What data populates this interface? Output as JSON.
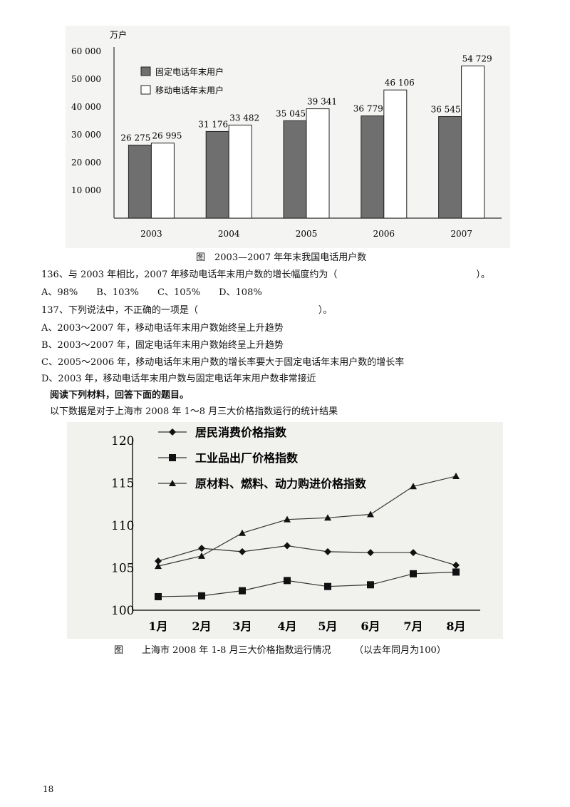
{
  "chart_data": [
    {
      "type": "bar",
      "ylabel": "万户",
      "ylim": [
        0,
        60000
      ],
      "yticks": [
        "10 000",
        "20 000",
        "30 000",
        "40 000",
        "50 000",
        "60 000"
      ],
      "ytick_values": [
        10000,
        20000,
        30000,
        40000,
        50000,
        60000
      ],
      "categories": [
        "2003",
        "2004",
        "2005",
        "2006",
        "2007"
      ],
      "series": [
        {
          "name": "固定电话年末用户",
          "values": [
            26275,
            31176,
            35045,
            36779,
            36545
          ],
          "labels": [
            "26 275",
            "31 176",
            "35 045",
            "36 779",
            "36 545"
          ],
          "color": "#6f6f6f"
        },
        {
          "name": "移动电话年末用户",
          "values": [
            26995,
            33482,
            39341,
            46106,
            54729
          ],
          "labels": [
            "26 995",
            "33 482",
            "39 341",
            "46 106",
            "54 729"
          ],
          "color": "#ffffff"
        }
      ],
      "legend": "top-left",
      "caption": "图　2003—2007 年年末我国电话用户数"
    },
    {
      "type": "line",
      "ylim": [
        100,
        120
      ],
      "yticks": [
        "100",
        "105",
        "110",
        "115",
        "120"
      ],
      "ytick_values": [
        100,
        105,
        110,
        115,
        120
      ],
      "categories": [
        "1月",
        "2月",
        "3月",
        "4月",
        "5月",
        "6月",
        "7月",
        "8月"
      ],
      "series": [
        {
          "name": "居民消费价格指数",
          "marker": "diamond",
          "values": [
            105.8,
            107.3,
            106.9,
            107.6,
            106.9,
            106.8,
            106.8,
            105.3
          ]
        },
        {
          "name": "工业品出厂价格指数",
          "marker": "square",
          "values": [
            101.6,
            101.7,
            102.3,
            103.5,
            102.8,
            103.0,
            104.3,
            104.5
          ]
        },
        {
          "name": "原材料、燃料、动力购进价格指数",
          "marker": "triangle",
          "values": [
            105.2,
            106.4,
            109.1,
            110.7,
            110.9,
            111.3,
            114.6,
            115.8
          ]
        }
      ],
      "legend": "top-left",
      "caption_main": "图　　上海市 2008 年 1-8 月三大价格指数运行情况",
      "caption_note": "（以去年同月为100）"
    }
  ],
  "q136": {
    "text": "136、与 2003 年相比，2007 年移动电话年末用户数的增长幅度约为（　　　　　　　　　　　　　　　）。",
    "options": "A、98%　　B、103%　　C、105%　　D、108%"
  },
  "q137": {
    "text": "137、下列说法中，不正确的一项是（　　　　　　　　　　　　　）。",
    "a": "A、2003～2007 年，移动电话年末用户数始终呈上升趋势",
    "b": "B、2003～2007 年，固定电话年末用户数始终呈上升趋势",
    "c": "C、2005～2006 年，移动电话年末用户数的增长率要大于固定电话年末用户数的增长率",
    "d": "D、2003 年，移动电话年末用户数与固定电话年末用户数非常接近"
  },
  "section": {
    "heading": "阅读下列材料，回答下面的题目。",
    "intro": "以下数据是对于上海市 2008 年 1～8 月三大价格指数运行的统计结果"
  },
  "page_number": "18"
}
